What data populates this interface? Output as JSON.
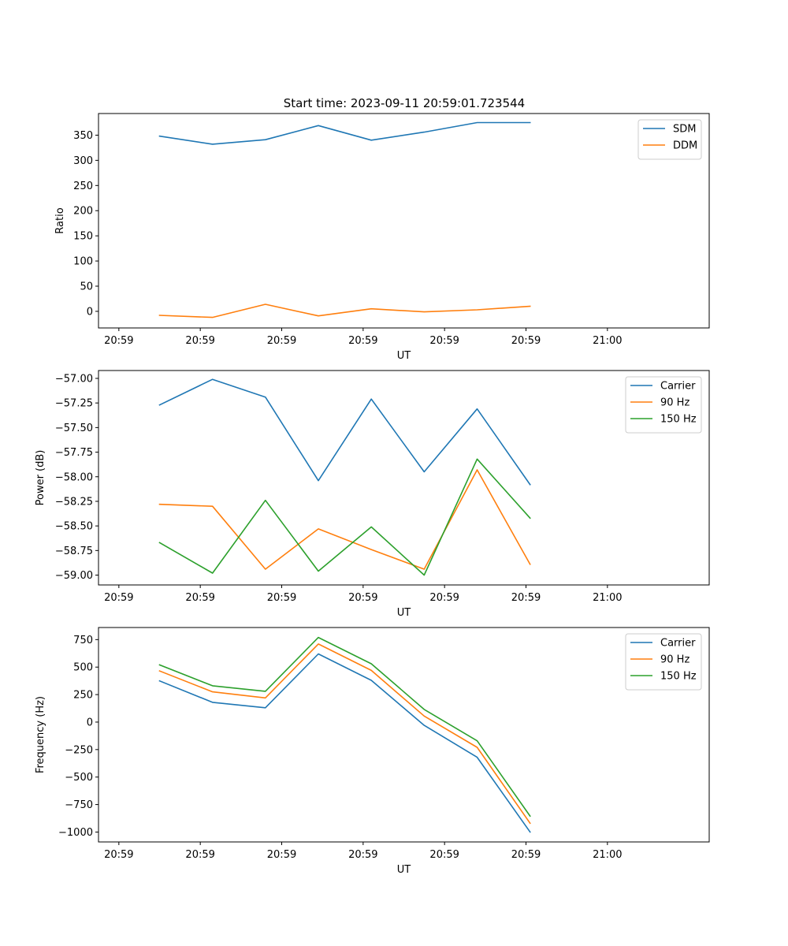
{
  "figure": {
    "title": "Start time: 2023-09-11 20:59:01.723544"
  },
  "chart_data": [
    {
      "type": "line",
      "title": "Start time: 2023-09-11 20:59:01.723544",
      "xlabel": "UT",
      "ylabel": "Ratio",
      "xlim": [
        0,
        30
      ],
      "ylim": [
        -33,
        393
      ],
      "x_ticks": [
        {
          "value": 1,
          "label": "20:59"
        },
        {
          "value": 5,
          "label": "20:59"
        },
        {
          "value": 9,
          "label": "20:59"
        },
        {
          "value": 13,
          "label": "20:59"
        },
        {
          "value": 17,
          "label": "20:59"
        },
        {
          "value": 21,
          "label": "20:59"
        },
        {
          "value": 25,
          "label": "21:00"
        }
      ],
      "y_ticks": [
        0,
        50,
        100,
        150,
        200,
        250,
        300,
        350
      ],
      "y_tick_labels": [
        "0",
        "50",
        "100",
        "150",
        "200",
        "250",
        "300",
        "350"
      ],
      "x": [
        3,
        5.6,
        8.2,
        10.8,
        13.4,
        16,
        18.6,
        21.2
      ],
      "series": [
        {
          "name": "SDM",
          "color": "#1f77b4",
          "values": [
            348,
            332,
            341,
            369,
            340,
            356,
            375,
            375
          ]
        },
        {
          "name": "DDM",
          "color": "#ff7f0e",
          "values": [
            -8,
            -12,
            14,
            -9,
            5,
            -1,
            3,
            10
          ]
        }
      ],
      "legend": "top-right"
    },
    {
      "type": "line",
      "title": "",
      "xlabel": "UT",
      "ylabel": "Power (dB)",
      "xlim": [
        0,
        30
      ],
      "ylim": [
        -59.1,
        -56.92
      ],
      "x_ticks": [
        {
          "value": 1,
          "label": "20:59"
        },
        {
          "value": 5,
          "label": "20:59"
        },
        {
          "value": 9,
          "label": "20:59"
        },
        {
          "value": 13,
          "label": "20:59"
        },
        {
          "value": 17,
          "label": "20:59"
        },
        {
          "value": 21,
          "label": "20:59"
        },
        {
          "value": 25,
          "label": "21:00"
        }
      ],
      "y_ticks": [
        -59.0,
        -58.75,
        -58.5,
        -58.25,
        -58.0,
        -57.75,
        -57.5,
        -57.25,
        -57.0
      ],
      "y_tick_labels": [
        "−59.00",
        "−58.75",
        "−58.50",
        "−58.25",
        "−58.00",
        "−57.75",
        "−57.50",
        "−57.25",
        "−57.00"
      ],
      "x": [
        3,
        5.6,
        8.2,
        10.8,
        13.4,
        16,
        18.6,
        21.2
      ],
      "series": [
        {
          "name": "Carrier",
          "color": "#1f77b4",
          "values": [
            -57.27,
            -57.01,
            -57.19,
            -58.04,
            -57.21,
            -57.95,
            -57.31,
            -58.08
          ]
        },
        {
          "name": "90 Hz",
          "color": "#ff7f0e",
          "values": [
            -58.28,
            -58.3,
            -58.94,
            -58.53,
            -58.74,
            -58.94,
            -57.93,
            -58.89
          ]
        },
        {
          "name": "150 Hz",
          "color": "#2ca02c",
          "values": [
            -58.67,
            -58.98,
            -58.24,
            -58.96,
            -58.51,
            -59.0,
            -57.82,
            -58.42
          ]
        }
      ],
      "legend": "top-right"
    },
    {
      "type": "line",
      "title": "",
      "xlabel": "UT",
      "ylabel": "Frequency (Hz)",
      "xlim": [
        0,
        30
      ],
      "ylim": [
        -1090,
        860
      ],
      "x_ticks": [
        {
          "value": 1,
          "label": "20:59"
        },
        {
          "value": 5,
          "label": "20:59"
        },
        {
          "value": 9,
          "label": "20:59"
        },
        {
          "value": 13,
          "label": "20:59"
        },
        {
          "value": 17,
          "label": "20:59"
        },
        {
          "value": 21,
          "label": "20:59"
        },
        {
          "value": 25,
          "label": "21:00"
        }
      ],
      "y_ticks": [
        -1000,
        -750,
        -500,
        -250,
        0,
        250,
        500,
        750
      ],
      "y_tick_labels": [
        "−1000",
        "−750",
        "−500",
        "−250",
        "0",
        "250",
        "500",
        "750"
      ],
      "x": [
        3,
        5.6,
        8.2,
        10.8,
        13.4,
        16,
        18.6,
        21.2
      ],
      "series": [
        {
          "name": "Carrier",
          "color": "#1f77b4",
          "values": [
            375,
            180,
            130,
            620,
            380,
            -30,
            -320,
            -1000
          ]
        },
        {
          "name": "90 Hz",
          "color": "#ff7f0e",
          "values": [
            465,
            275,
            220,
            710,
            470,
            55,
            -230,
            -920
          ]
        },
        {
          "name": "150 Hz",
          "color": "#2ca02c",
          "values": [
            520,
            330,
            280,
            770,
            530,
            115,
            -170,
            -855
          ]
        }
      ],
      "legend": "top-right"
    }
  ]
}
